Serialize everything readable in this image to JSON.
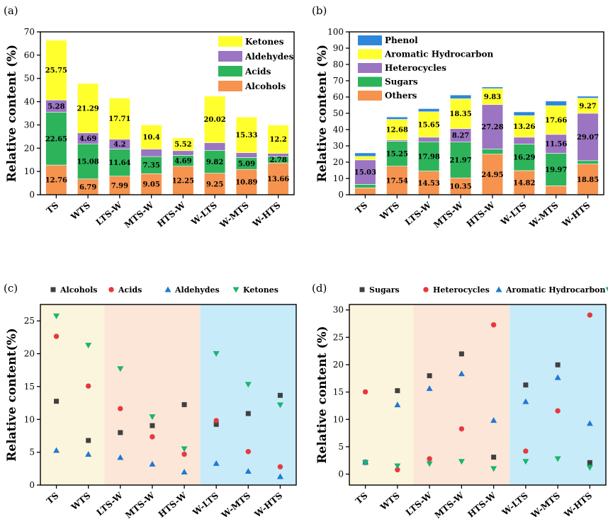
{
  "colors": {
    "alcohols_others": "#f5934f",
    "acids_sugars": "#2db35a",
    "aldehydes_heterocycles": "#9b74c2",
    "ketones_aromatic": "#ffff2e",
    "phenol": "#2d86d9",
    "series_square": "#404040",
    "series_circle": "#e8383b",
    "series_tri_up": "#1f78d4",
    "series_tri_down": "#18b56c",
    "region1": "#fbf5dd",
    "region2": "#fbe6d8",
    "region3": "#c7ebf8"
  },
  "chart_data": [
    {
      "panel": "(a)",
      "type": "bar",
      "stacked": true,
      "categories": [
        "TS",
        "WTS",
        "LTS-W",
        "MTS-W",
        "HTS-W",
        "W-LTS",
        "W-MTS",
        "W-HTS"
      ],
      "series": [
        {
          "name": "Alcohols",
          "values": [
            12.76,
            6.79,
            7.99,
            9.05,
            12.25,
            9.25,
            10.89,
            13.66
          ]
        },
        {
          "name": "Acids",
          "values": [
            22.65,
            15.08,
            11.64,
            7.35,
            4.69,
            9.82,
            5.09,
            2.78
          ]
        },
        {
          "name": "Aldehydes",
          "values": [
            5.28,
            4.69,
            4.2,
            3.2,
            2.0,
            3.3,
            2.1,
            1.3
          ]
        },
        {
          "name": "Ketones",
          "values": [
            25.75,
            21.29,
            17.71,
            10.4,
            5.52,
            20.02,
            15.33,
            12.2
          ]
        }
      ],
      "data_labels": [
        [
          "12.76",
          "6.79",
          "7.99",
          "9.05",
          "12.25",
          "9.25",
          "10.89",
          "13.66"
        ],
        [
          "22.65",
          "15.08",
          "11.64",
          "7.35",
          "4.69",
          "9.82",
          "5.09",
          "2.78"
        ],
        [
          "5.28",
          "4.69",
          "4.2",
          "",
          "",
          "",
          "",
          ""
        ],
        [
          "25.75",
          "21.29",
          "17.71",
          "10.4",
          "5.52",
          "20.02",
          "15.33",
          "12.2"
        ]
      ],
      "legend": [
        "Ketones",
        "Aldehydes",
        "Acids",
        "Alcohols"
      ],
      "ylabel": "Relative content (%)",
      "ylim": [
        0,
        70
      ],
      "yticks": [
        0,
        10,
        20,
        30,
        40,
        50,
        60,
        70
      ]
    },
    {
      "panel": "(b)",
      "type": "bar",
      "stacked": true,
      "categories": [
        "TS",
        "WTS",
        "LTS-W",
        "MTS-W",
        "HTS-W",
        "W-LTS",
        "W-MTS",
        "W-HTS"
      ],
      "series": [
        {
          "name": "Others",
          "values": [
            4.2,
            17.54,
            14.53,
            10.35,
            24.95,
            14.82,
            5.5,
            18.85
          ]
        },
        {
          "name": "Sugars",
          "values": [
            2.15,
            15.25,
            17.98,
            21.97,
            3.1,
            16.29,
            19.97,
            2.1
          ]
        },
        {
          "name": "Heterocycles",
          "values": [
            15.03,
            0.8,
            2.8,
            8.27,
            27.28,
            4.2,
            11.56,
            29.07
          ]
        },
        {
          "name": "Aromatic Hydrocarbon",
          "values": [
            2.2,
            12.68,
            15.65,
            18.35,
            9.83,
            13.26,
            17.66,
            9.27
          ]
        },
        {
          "name": "Phenol",
          "values": [
            2.1,
            1.5,
            1.9,
            2.3,
            1.0,
            2.3,
            2.8,
            1.2
          ]
        }
      ],
      "data_labels": [
        [
          "",
          "17.54",
          "14.53",
          "10.35",
          "24.95",
          "14.82",
          "",
          "18.85"
        ],
        [
          "",
          "15.25",
          "17.98",
          "21.97",
          "",
          "16.29",
          "19.97",
          ""
        ],
        [
          "15.03",
          "",
          "",
          "8.27",
          "27.28",
          "",
          "11.56",
          "29.07"
        ],
        [
          "",
          "12.68",
          "15.65",
          "18.35",
          "9.83",
          "13.26",
          "17.66",
          "9.27"
        ],
        [
          "",
          "",
          "",
          "",
          "",
          "",
          "",
          ""
        ]
      ],
      "legend": [
        "Phenol",
        "Aromatic Hydrocarbon",
        "Heterocycles",
        "Sugars",
        "Others"
      ],
      "ylabel": "Relative content (%)",
      "ylim": [
        0,
        100
      ],
      "yticks": [
        0,
        10,
        20,
        30,
        40,
        50,
        60,
        70,
        80,
        90,
        100
      ]
    },
    {
      "panel": "(c)",
      "type": "scatter",
      "categories": [
        "TS",
        "WTS",
        "LTS-W",
        "MTS-W",
        "HTS-W",
        "W-LTS",
        "W-MTS",
        "W-HTS"
      ],
      "series": [
        {
          "name": "Alcohols",
          "marker": "square",
          "values": [
            12.76,
            6.79,
            7.99,
            9.05,
            12.25,
            9.25,
            10.89,
            13.66
          ]
        },
        {
          "name": "Acids",
          "marker": "circle",
          "values": [
            22.65,
            15.08,
            11.64,
            7.35,
            4.69,
            9.82,
            5.09,
            2.78
          ]
        },
        {
          "name": "Aldehydes",
          "marker": "triangle-up",
          "values": [
            5.28,
            4.69,
            4.2,
            3.2,
            2.0,
            3.3,
            2.1,
            1.3
          ]
        },
        {
          "name": "Ketones",
          "marker": "triangle-down",
          "values": [
            25.75,
            21.29,
            17.71,
            10.4,
            5.52,
            20.02,
            15.33,
            12.2
          ]
        }
      ],
      "regions": [
        [
          0,
          1
        ],
        [
          2,
          4
        ],
        [
          5,
          7
        ]
      ],
      "ylabel": "Relative content(%)",
      "ylim": [
        0,
        27.5
      ],
      "yticks": [
        0,
        5,
        10,
        15,
        20,
        25
      ]
    },
    {
      "panel": "(d)",
      "type": "scatter",
      "categories": [
        "TS",
        "WTS",
        "LTS-W",
        "MTS-W",
        "HTS-W",
        "W-LTS",
        "W-MTS",
        "W-HTS"
      ],
      "series": [
        {
          "name": "Sugars",
          "marker": "square",
          "values": [
            2.15,
            15.25,
            17.98,
            21.97,
            3.1,
            16.29,
            19.97,
            2.1
          ]
        },
        {
          "name": "Heterocycles",
          "marker": "circle",
          "values": [
            15.03,
            0.8,
            2.8,
            8.27,
            27.28,
            4.2,
            11.56,
            29.07
          ]
        },
        {
          "name": "Aromatic Hydrocarbon",
          "marker": "triangle-up",
          "values": [
            2.2,
            12.68,
            15.65,
            18.35,
            9.83,
            13.26,
            17.66,
            9.27
          ]
        },
        {
          "name": "Phenol",
          "marker": "triangle-down",
          "values": [
            2.1,
            1.5,
            1.9,
            2.3,
            1.0,
            2.3,
            2.8,
            1.2
          ]
        }
      ],
      "regions": [
        [
          0,
          1
        ],
        [
          2,
          4
        ],
        [
          5,
          7
        ]
      ],
      "ylabel": "Relative content (%)",
      "ylim": [
        -2,
        31
      ],
      "yticks": [
        0,
        5,
        10,
        15,
        20,
        25,
        30
      ]
    }
  ]
}
